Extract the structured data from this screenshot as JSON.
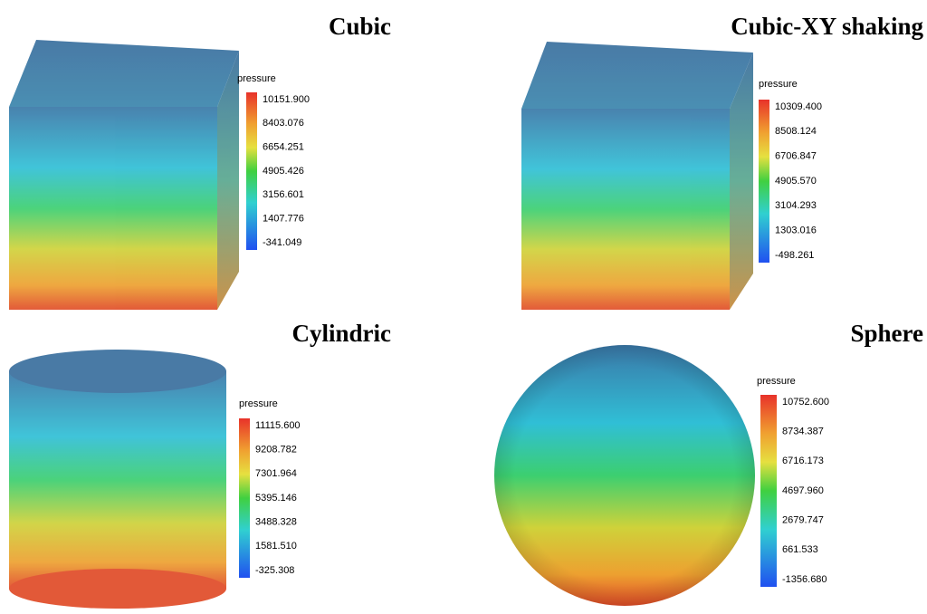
{
  "panels": [
    {
      "title": "Cubic",
      "legend": {
        "title": "pressure",
        "labels": [
          "10151.900",
          "8403.076",
          "6654.251",
          "4905.426",
          "3156.601",
          "1407.776",
          "-341.049"
        ]
      }
    },
    {
      "title": "Cubic-XY shaking",
      "legend": {
        "title": "pressure",
        "labels": [
          "10309.400",
          "8508.124",
          "6706.847",
          "4905.570",
          "3104.293",
          "1303.016",
          "-498.261"
        ]
      }
    },
    {
      "title": "Cylindric",
      "legend": {
        "title": "pressure",
        "labels": [
          "11115.600",
          "9208.782",
          "7301.964",
          "5395.146",
          "3488.328",
          "1581.510",
          "-325.308"
        ]
      }
    },
    {
      "title": "Sphere",
      "legend": {
        "title": "pressure",
        "labels": [
          "10752.600",
          "8734.387",
          "6716.173",
          "4697.960",
          "2679.747",
          "661.533",
          "-1356.680"
        ]
      }
    }
  ]
}
